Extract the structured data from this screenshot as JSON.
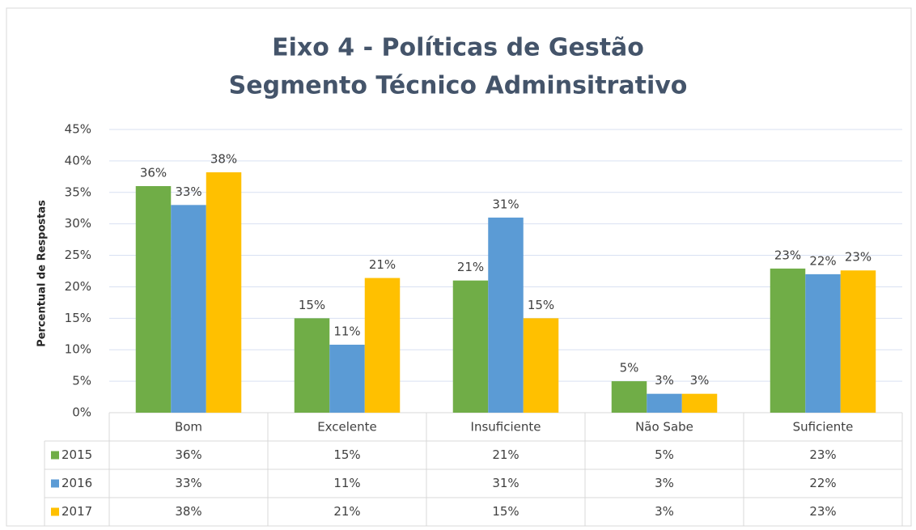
{
  "chart_data": {
    "type": "bar",
    "title": [
      "Eixo 4 - Políticas de Gestão",
      "Segmento Técnico Adminsitrativo"
    ],
    "y_label": "Percentual de Respostas",
    "categories": [
      "Bom",
      "Excelente",
      "Insuficiente",
      "Não Sabe",
      "Suficiente"
    ],
    "series": [
      {
        "name": "2015",
        "color": "#70ad47",
        "values": [
          36,
          15,
          21,
          5,
          22.9
        ],
        "value_labels": [
          "36%",
          "15%",
          "21%",
          "5%",
          "23%"
        ]
      },
      {
        "name": "2016",
        "color": "#5b9bd5",
        "values": [
          33,
          10.8,
          31,
          3,
          22
        ],
        "value_labels": [
          "33%",
          "11%",
          "31%",
          "3%",
          "22%"
        ]
      },
      {
        "name": "2017",
        "color": "#ffc000",
        "values": [
          38.2,
          21.4,
          15,
          3,
          22.6
        ],
        "value_labels": [
          "38%",
          "21%",
          "15%",
          "3%",
          "23%"
        ]
      }
    ],
    "ylim": [
      0,
      45
    ],
    "yticks": [
      {
        "value": 0,
        "label": "0%"
      },
      {
        "value": 5,
        "label": "5%"
      },
      {
        "value": 10,
        "label": "10%"
      },
      {
        "value": 15,
        "label": "15%"
      },
      {
        "value": 20,
        "label": "20%"
      },
      {
        "value": 25,
        "label": "25%"
      },
      {
        "value": 30,
        "label": "30%"
      },
      {
        "value": 35,
        "label": "35%"
      },
      {
        "value": 40,
        "label": "40%"
      },
      {
        "value": 45,
        "label": "45%"
      }
    ],
    "grid": true,
    "legend": "table"
  }
}
